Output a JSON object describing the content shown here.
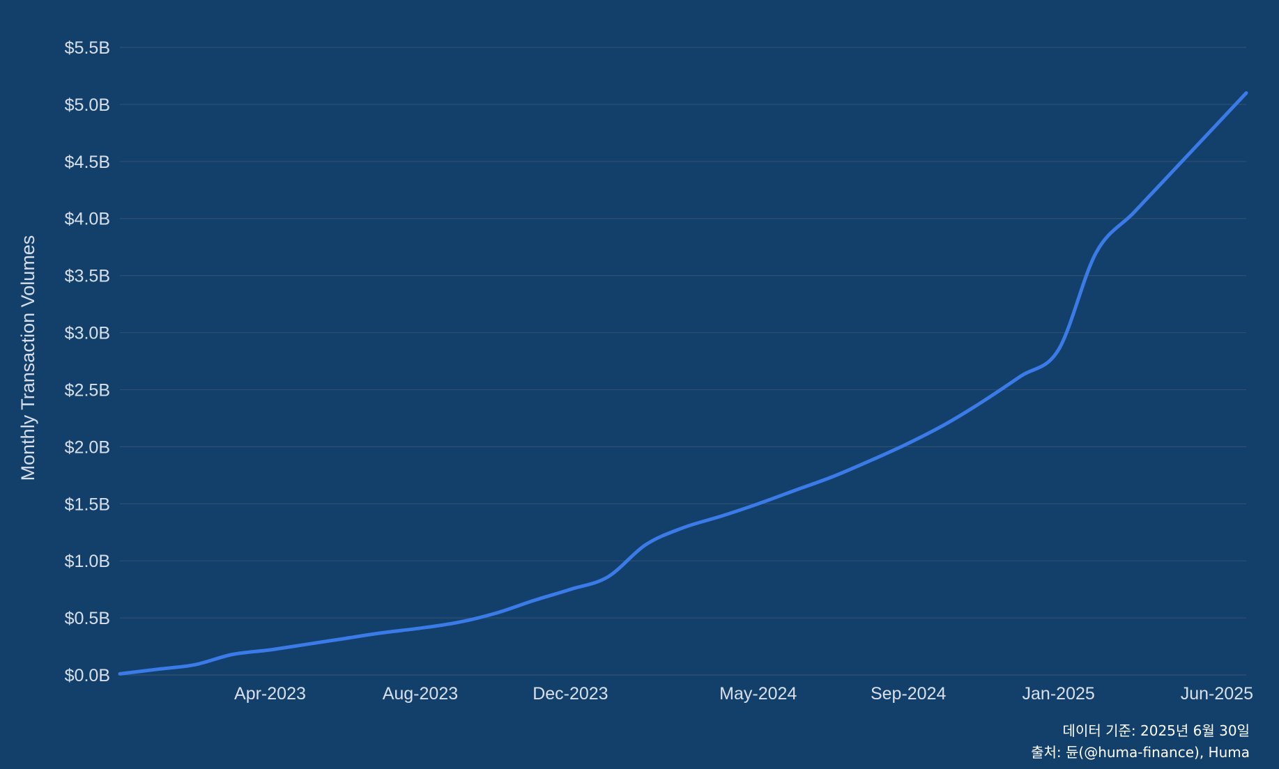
{
  "chart_data": {
    "type": "line",
    "ylabel": "Monthly Transaction Volumes",
    "ylim": [
      0,
      5.5
    ],
    "y_ticks": [
      "$0.0B",
      "$0.5B",
      "$1.0B",
      "$1.5B",
      "$2.0B",
      "$2.5B",
      "$3.0B",
      "$3.5B",
      "$4.0B",
      "$4.5B",
      "$5.0B",
      "$5.5B"
    ],
    "x_range": [
      "2022-12",
      "2025-06"
    ],
    "x_ticks": [
      {
        "label": "Apr-2023",
        "date": "2023-04"
      },
      {
        "label": "Aug-2023",
        "date": "2023-08"
      },
      {
        "label": "Dec-2023",
        "date": "2023-12"
      },
      {
        "label": "May-2024",
        "date": "2024-05"
      },
      {
        "label": "Sep-2024",
        "date": "2024-09"
      },
      {
        "label": "Jan-2025",
        "date": "2025-01"
      },
      {
        "label": "Jun-2025",
        "date": "2025-06"
      }
    ],
    "grid": true,
    "series": [
      {
        "color": "#3a7be8",
        "x": [
          "2022-12",
          "2023-01",
          "2023-02",
          "2023-03",
          "2023-04",
          "2023-05",
          "2023-06",
          "2023-07",
          "2023-08",
          "2023-09",
          "2023-10",
          "2023-11",
          "2023-12",
          "2024-01",
          "2024-02",
          "2024-03",
          "2024-04",
          "2024-05",
          "2024-06",
          "2024-07",
          "2024-08",
          "2024-09",
          "2024-10",
          "2024-11",
          "2024-12",
          "2025-01",
          "2025-02",
          "2025-03",
          "2025-04",
          "2025-05",
          "2025-06"
        ],
        "values": [
          0.01,
          0.05,
          0.09,
          0.18,
          0.22,
          0.27,
          0.32,
          0.37,
          0.41,
          0.46,
          0.54,
          0.65,
          0.75,
          0.86,
          1.14,
          1.29,
          1.39,
          1.5,
          1.62,
          1.74,
          1.88,
          2.03,
          2.2,
          2.4,
          2.62,
          2.85,
          3.7,
          4.05,
          4.4,
          4.75,
          5.1
        ]
      }
    ]
  },
  "footer": {
    "date_note": "데이터 기준: 2025년 6월 30일",
    "source": "출처: 듄(@huma-finance), Huma"
  }
}
